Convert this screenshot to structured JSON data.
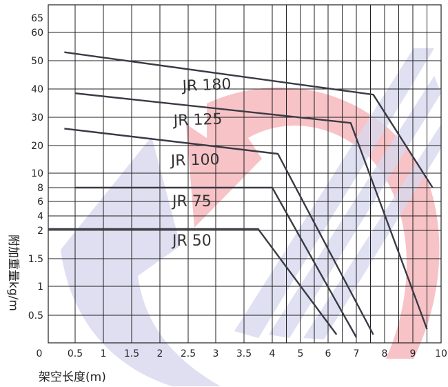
{
  "chart_data": {
    "type": "line",
    "xlabel": "架空长度(m)",
    "ylabel": "附加重量kg/m",
    "x_ticks": [
      "0",
      "0.5",
      "1",
      "1.5",
      "2",
      "2.5",
      "3",
      "3.5",
      "4",
      "5",
      "6",
      "7",
      "8",
      "9",
      "10"
    ],
    "y_ticks": [
      "0.5",
      "1",
      "1.5",
      "2",
      "4",
      "6",
      "8",
      "10",
      "20",
      "30",
      "40",
      "50",
      "60",
      "65"
    ],
    "grid": true,
    "series": [
      {
        "name": "JR 180",
        "points": [
          [
            0.3,
            53
          ],
          [
            7.6,
            38
          ],
          [
            9.7,
            8
          ]
        ]
      },
      {
        "name": "JR 125",
        "points": [
          [
            0.5,
            38.5
          ],
          [
            6.8,
            28
          ],
          [
            9.5,
            0.25
          ]
        ]
      },
      {
        "name": "JR 100",
        "points": [
          [
            0.3,
            26
          ],
          [
            4.2,
            17
          ],
          [
            7.6,
            0.15
          ]
        ]
      },
      {
        "name": "JR 75",
        "points": [
          [
            0.5,
            8
          ],
          [
            4,
            8
          ],
          [
            7,
            0.1
          ]
        ]
      },
      {
        "name": "JR 50",
        "points": [
          [
            0,
            2.2
          ],
          [
            3.75,
            2.2
          ],
          [
            6.3,
            0.15
          ]
        ]
      }
    ]
  },
  "watermark": {
    "colors": [
      "#d7d8ee",
      "#f7c2c5"
    ]
  },
  "style": {
    "line_color": "#3a3a44",
    "grid_color": "#1f1f1f"
  }
}
